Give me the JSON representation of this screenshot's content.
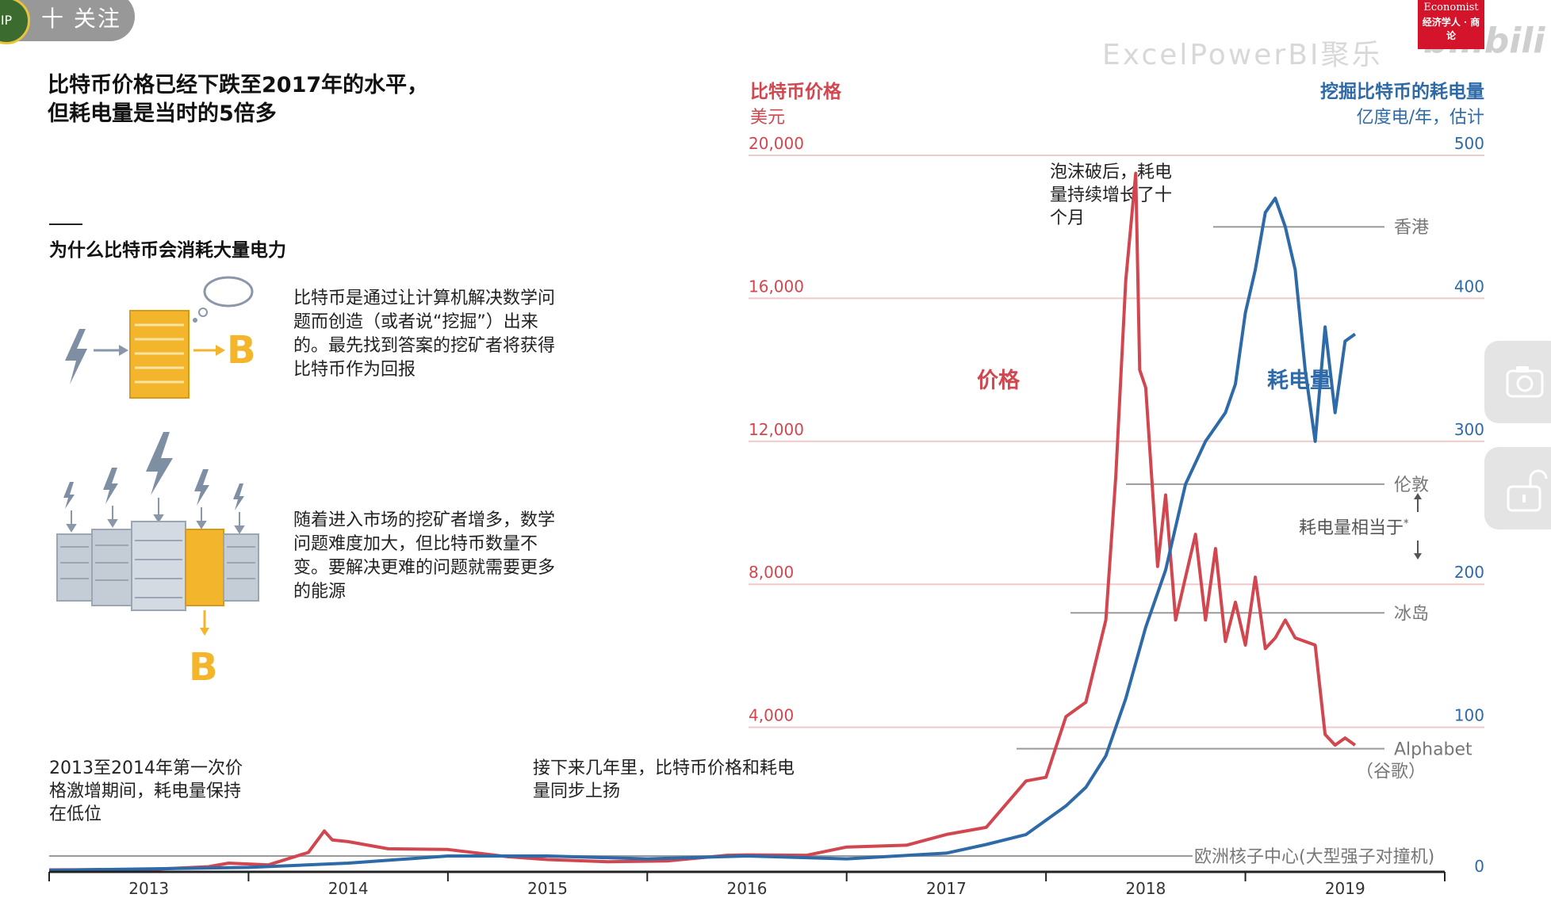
{
  "overlay": {
    "follow_label": "十 关注",
    "avatar_text": "IP",
    "logo_line1": "Economist",
    "logo_line2": "经济学人 · 商论",
    "watermark": "ExcelPowerBI聚乐",
    "bili_mark": "bilibili",
    "side_buttons": [
      "camera-icon",
      "unlock-icon"
    ]
  },
  "header": {
    "title_line1": "比特币价格已经下跌至2017年的水平，",
    "title_line2": "但耗电量是当时的5倍多"
  },
  "explainer": {
    "subtitle": "为什么比特币会消耗大量电力",
    "para1": "比特币是通过让计算机解决数学问题而创造（或者说“挖掘”）出来的。最先找到答案的挖矿者将获得比特币作为回报",
    "para2": "随着进入市场的挖矿者增多，数学问题难度加大，但比特币数量不变。要解决更难的问题就需要更多的能源",
    "bitcoin_symbol": "B"
  },
  "colors": {
    "price": "#d2474f",
    "energy": "#2e6aa8",
    "bitcoin_gold": "#f2b52c",
    "server_gray": "#c4ccd6"
  },
  "chart_data": {
    "type": "line",
    "title": "比特币价格已经下跌至2017年的水平，但耗电量是当时的5倍多",
    "x_ticks": [
      "2013",
      "2014",
      "2015",
      "2016",
      "2017",
      "2018",
      "2019"
    ],
    "xlim": [
      2012.5,
      2019.5
    ],
    "left_axis": {
      "label": "比特币价格",
      "unit": "美元",
      "ylim": [
        0,
        20000
      ],
      "ticks": [
        "4,000",
        "8,000",
        "12,000",
        "16,000",
        "20,000"
      ]
    },
    "right_axis": {
      "label": "挖掘比特币的耗电量",
      "unit": "亿度电/年，估计",
      "ylim": [
        0,
        500
      ],
      "ticks": [
        "0",
        "100",
        "200",
        "300",
        "400",
        "500"
      ]
    },
    "series": [
      {
        "name": "价格",
        "axis": "left",
        "x": [
          2012.5,
          2013.0,
          2013.3,
          2013.4,
          2013.6,
          2013.8,
          2013.88,
          2013.92,
          2014.0,
          2014.2,
          2014.5,
          2014.8,
          2015.0,
          2015.3,
          2015.6,
          2015.9,
          2016.0,
          2016.3,
          2016.5,
          2016.8,
          2017.0,
          2017.2,
          2017.4,
          2017.5,
          2017.6,
          2017.7,
          2017.8,
          2017.85,
          2017.9,
          2017.95,
          2017.97,
          2018.0,
          2018.03,
          2018.06,
          2018.1,
          2018.15,
          2018.2,
          2018.25,
          2018.3,
          2018.35,
          2018.4,
          2018.45,
          2018.5,
          2018.55,
          2018.6,
          2018.65,
          2018.7,
          2018.75,
          2018.8,
          2018.85,
          2018.9,
          2018.95,
          2019.0,
          2019.05
        ],
        "values": [
          10,
          20,
          100,
          200,
          150,
          500,
          1100,
          850,
          800,
          600,
          580,
          380,
          300,
          240,
          260,
          420,
          430,
          420,
          650,
          700,
          1000,
          1200,
          2500,
          2600,
          4300,
          4700,
          7000,
          11000,
          16500,
          19500,
          14000,
          13500,
          11000,
          8500,
          10500,
          7000,
          8200,
          9400,
          7000,
          9000,
          6400,
          7500,
          6300,
          8200,
          6200,
          6500,
          7000,
          6500,
          6400,
          6300,
          3800,
          3500,
          3700,
          3500
        ]
      },
      {
        "name": "耗电量",
        "axis": "right",
        "x": [
          2012.5,
          2013.0,
          2013.5,
          2014.0,
          2014.5,
          2015.0,
          2015.5,
          2016.0,
          2016.5,
          2017.0,
          2017.2,
          2017.4,
          2017.5,
          2017.6,
          2017.7,
          2017.8,
          2017.9,
          2018.0,
          2018.1,
          2018.2,
          2018.3,
          2018.4,
          2018.45,
          2018.5,
          2018.55,
          2018.6,
          2018.65,
          2018.7,
          2018.75,
          2018.8,
          2018.85,
          2018.9,
          2018.95,
          2019.0,
          2019.05
        ],
        "values": [
          0,
          1,
          2,
          5,
          10,
          10,
          8,
          10,
          8,
          12,
          18,
          25,
          35,
          45,
          58,
          80,
          120,
          170,
          210,
          270,
          300,
          320,
          340,
          390,
          420,
          460,
          470,
          450,
          420,
          350,
          300,
          380,
          320,
          370,
          375
        ]
      }
    ],
    "reference_lines": [
      {
        "label": "香港",
        "value": 450
      },
      {
        "label": "伦敦",
        "value": 270
      },
      {
        "label": "冰岛",
        "value": 180
      },
      {
        "label": "Alphabet",
        "sublabel": "（谷歌）",
        "value": 85
      },
      {
        "label": "欧洲核子中心(大型强子对撞机)",
        "value": 10
      }
    ],
    "equivalent_label": "耗电量相当于",
    "equivalent_mark": "*",
    "annotations": [
      {
        "text": "泡沫破后，耗电量持续增长了十个月"
      },
      {
        "text": "2013至2014年第一次价格激增期间，耗电量保持在低位"
      },
      {
        "text": "接下来几年里，比特币价格和耗电量同步上扬"
      }
    ],
    "series_labels": {
      "price": "价格",
      "energy": "耗电量"
    }
  }
}
